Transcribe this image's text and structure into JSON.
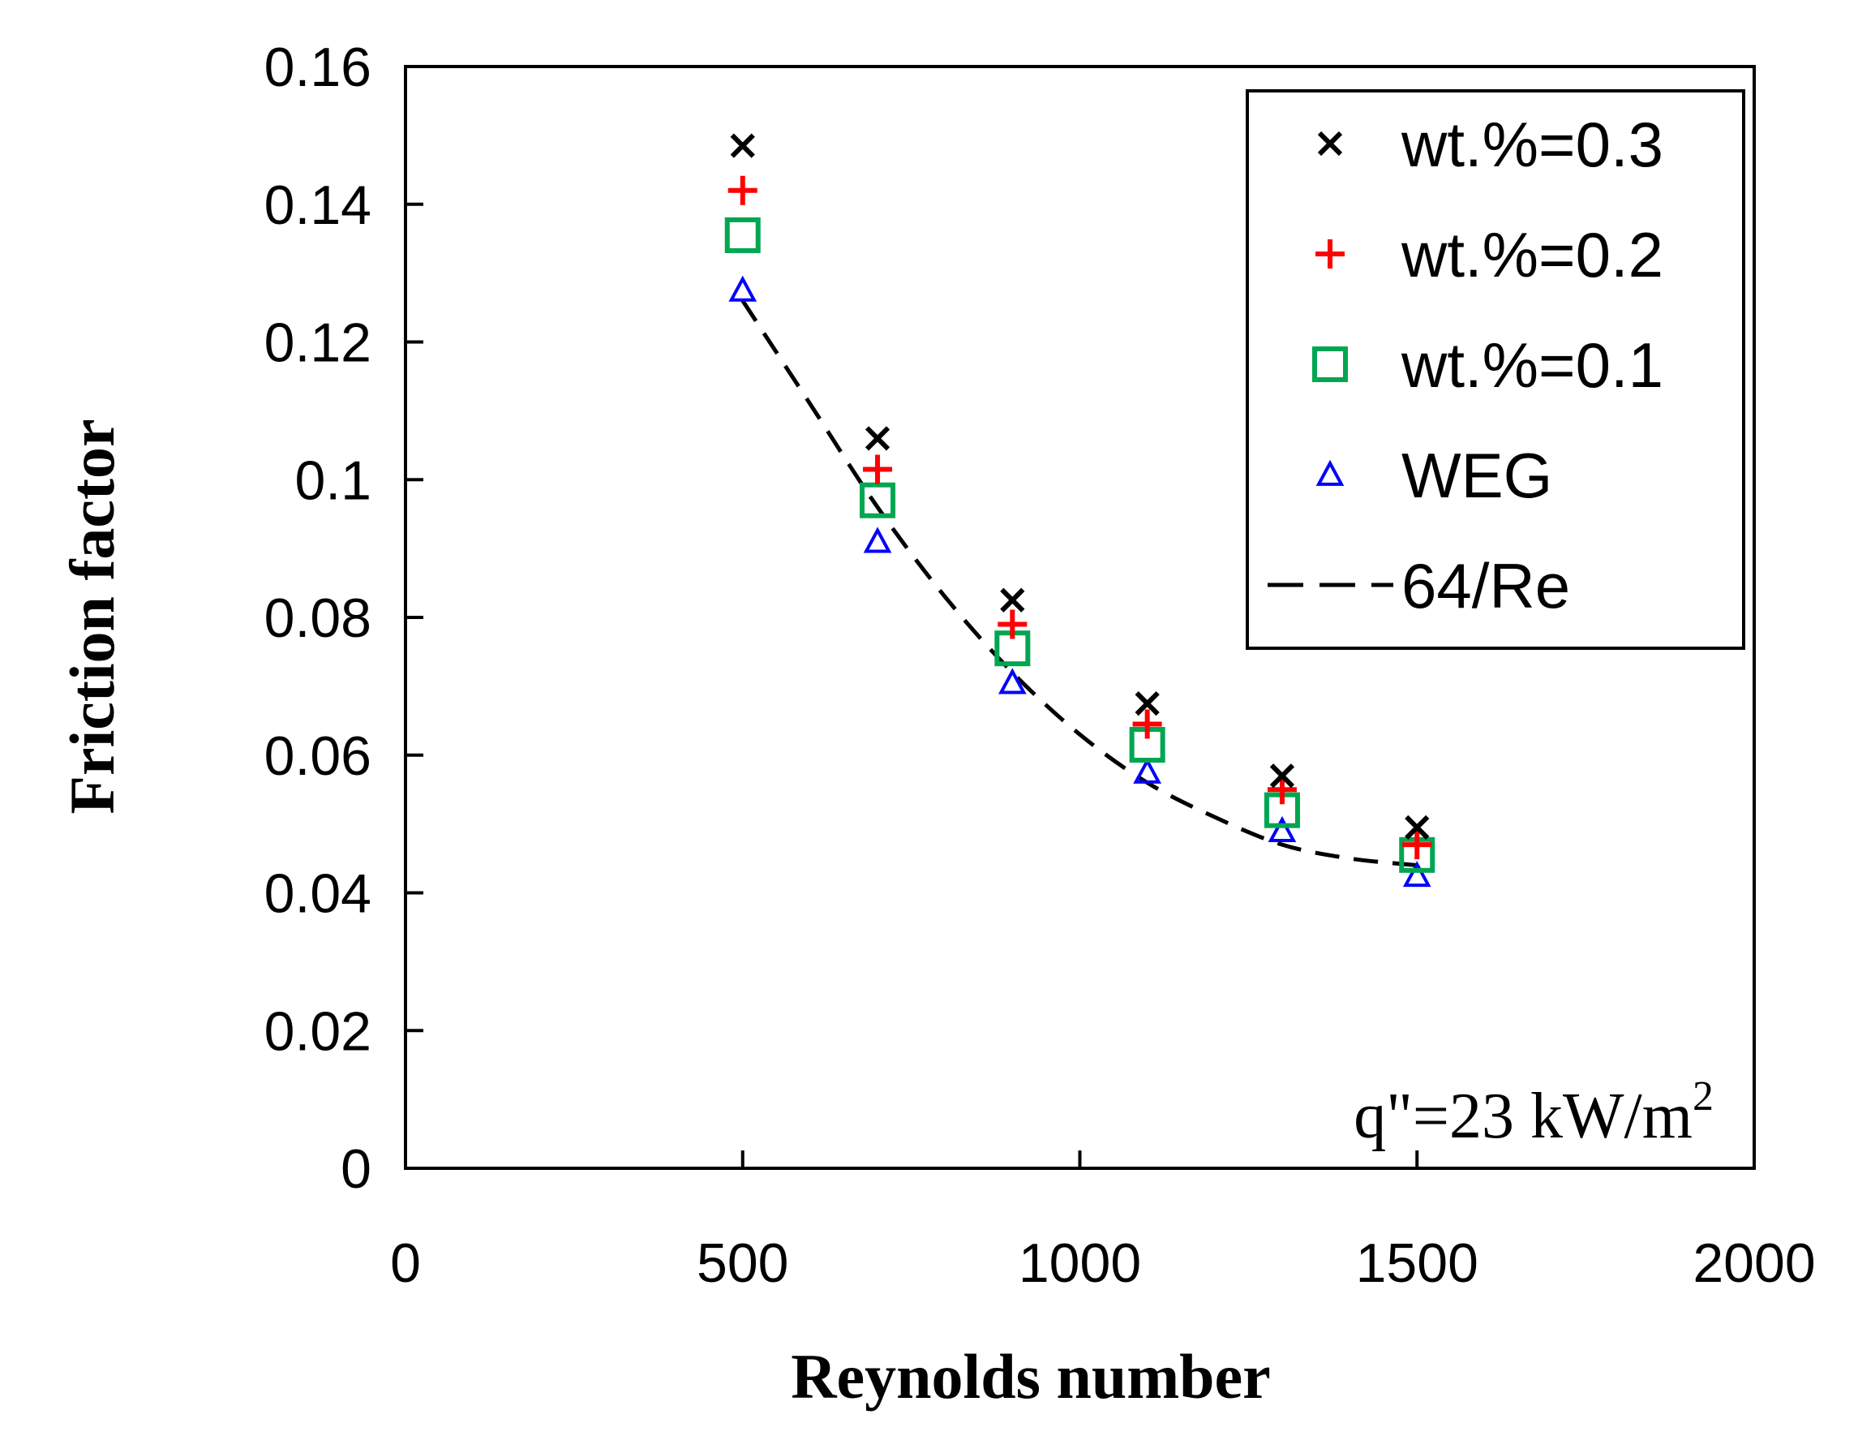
{
  "chart_data": {
    "type": "scatter",
    "title": "",
    "xlabel": "Reynolds number",
    "ylabel": "Friction factor",
    "xlim": [
      0,
      2000
    ],
    "ylim": [
      0,
      0.16
    ],
    "xticks": [
      0,
      500,
      1000,
      1500,
      2000
    ],
    "xtick_labels": [
      "0",
      "500",
      "1000",
      "1500",
      "2000"
    ],
    "yticks": [
      0,
      0.02,
      0.04,
      0.06,
      0.08,
      0.1,
      0.12,
      0.14,
      0.16
    ],
    "ytick_labels": [
      "0",
      "0.02",
      "0.04",
      "0.06",
      "0.08",
      "0.1",
      "0.12",
      "0.14",
      "0.16"
    ],
    "grid": false,
    "legend_position": "top-right",
    "series": [
      {
        "name": "wt.%=0.3",
        "marker": "x",
        "color": "#000000",
        "x": [
          500,
          700,
          900,
          1100,
          1300,
          1500
        ],
        "y": [
          0.1485,
          0.106,
          0.0825,
          0.0675,
          0.057,
          0.0495
        ]
      },
      {
        "name": "wt.%=0.2",
        "marker": "plus",
        "color": "#ff0000",
        "x": [
          500,
          700,
          900,
          1100,
          1300,
          1500
        ],
        "y": [
          0.142,
          0.1015,
          0.079,
          0.0645,
          0.055,
          0.047
        ]
      },
      {
        "name": "wt.%=0.1",
        "marker": "square",
        "color": "#00a651",
        "x": [
          500,
          700,
          900,
          1100,
          1300,
          1500
        ],
        "y": [
          0.1355,
          0.097,
          0.0755,
          0.0615,
          0.052,
          0.0455
        ]
      },
      {
        "name": "WEG",
        "marker": "triangle",
        "color": "#0000ff",
        "x": [
          500,
          700,
          900,
          1100,
          1300,
          1500
        ],
        "y": [
          0.1275,
          0.091,
          0.0705,
          0.0575,
          0.049,
          0.0425
        ]
      },
      {
        "name": "64/Re",
        "marker": "dashed-line",
        "color": "#000000",
        "x": [
          500,
          600,
          700,
          800,
          900,
          1000,
          1100,
          1200,
          1300,
          1400,
          1500
        ],
        "y": [
          0.126,
          0.111,
          0.096,
          0.083,
          0.072,
          0.063,
          0.056,
          0.051,
          0.047,
          0.045,
          0.044
        ]
      }
    ],
    "annotation": {
      "text": "q\"=23 kW/m",
      "superscript": "2"
    }
  }
}
